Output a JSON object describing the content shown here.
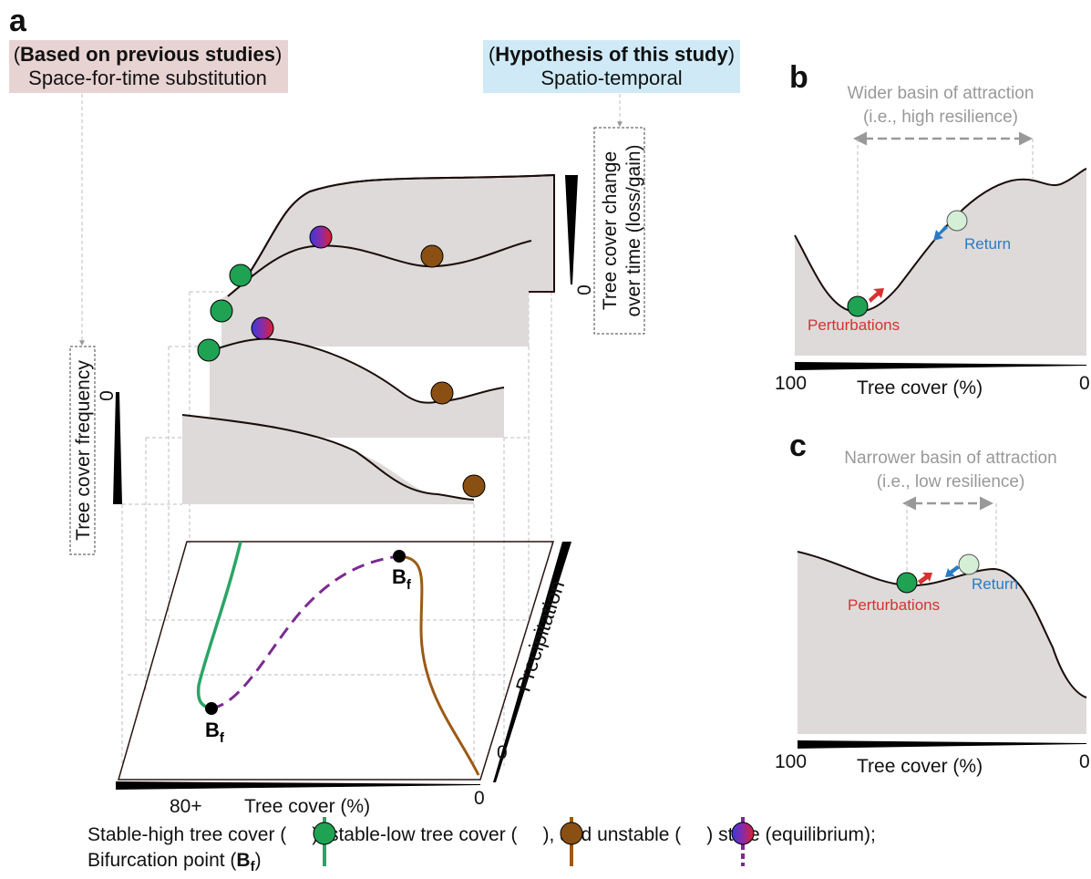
{
  "panel_a": {
    "letter": "a",
    "header_left": {
      "bold": "Based on previous studies",
      "line2": "Space-for-time substitution",
      "bg": "#e8d3d3"
    },
    "header_right": {
      "bold": "Hypothesis of this study",
      "line2": "Spatio-temporal",
      "bg": "#cfeaf6"
    },
    "y_axis_left": "Tree cover frequency",
    "y_axis_left_zero": "0",
    "y_axis_right_line1": "Tree cover change",
    "y_axis_right_line2": "over time (loss/gain)",
    "y_axis_right_zero": "0",
    "precip_label": "Precipitation",
    "precip_zero": "0",
    "x_axis_label": "Tree cover (%)",
    "x_axis_left": "80+",
    "x_axis_right": "0",
    "bf_sub": "f",
    "bf_main": "B"
  },
  "panel_b": {
    "letter": "b",
    "basin_line1": "Wider basin of attraction",
    "basin_line2": "(i.e., high resilience)",
    "perturb": "Perturbations",
    "return": "Return",
    "x_label": "Tree cover (%)",
    "x_left": "100",
    "x_right": "0"
  },
  "panel_c": {
    "letter": "c",
    "basin_line1": "Narrower basin of attraction",
    "basin_line2": "(i.e., low resilience)",
    "perturb": "Perturbations",
    "return": "Return",
    "x_label": "Tree cover (%)",
    "x_left": "100",
    "x_right": "0"
  },
  "legend": {
    "t1": "Stable-high tree cover (",
    "t2": "), stable-low tree cover (",
    "t3": "), and unstable (",
    "t4": ") state (equilibrium);",
    "t5": "Bifurcation point (",
    "t6": ")",
    "bf_main": "B",
    "bf_sub": "f"
  },
  "colors": {
    "stable_high": "#1fa252",
    "stable_low": "#8a4f12",
    "stable_high_line": "#2aa566",
    "stable_low_line": "#9b5a15",
    "unstable_line": "#7b2a90",
    "perturb": "#d63232",
    "return": "#2a7bc4",
    "fill": "#dedad9"
  }
}
